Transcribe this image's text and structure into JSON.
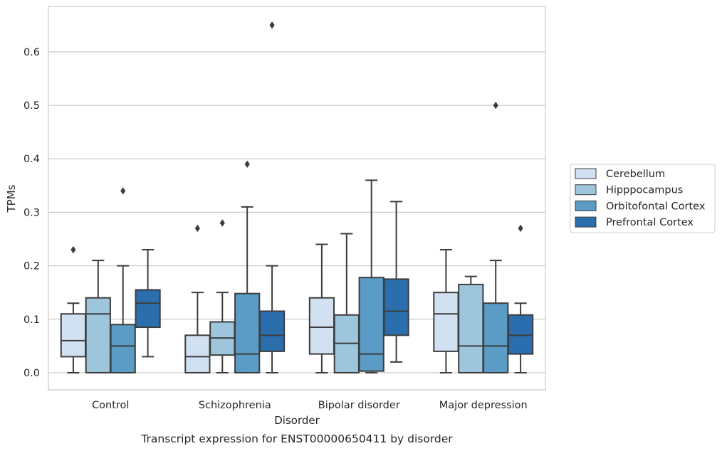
{
  "chart_data": {
    "type": "box",
    "title": "Transcript expression for ENST00000650411 by disorder",
    "xlabel": "Disorder",
    "ylabel": "TPMs",
    "ylim": [
      -0.032,
      0.685
    ],
    "yticks": [
      "0.0",
      "0.1",
      "0.2",
      "0.3",
      "0.4",
      "0.5",
      "0.6"
    ],
    "grid": true,
    "legend_position": "right",
    "categories": [
      "Control",
      "Schizophrenia",
      "Bipolar disorder",
      "Major depression"
    ],
    "series": [
      {
        "name": "Cerebellum",
        "color": "#d1e1f1",
        "boxes": [
          {
            "whislo": 0.0,
            "q1": 0.03,
            "med": 0.06,
            "q3": 0.11,
            "whishi": 0.13,
            "fliers": [
              0.23
            ]
          },
          {
            "whislo": 0.0,
            "q1": 0.0,
            "med": 0.03,
            "q3": 0.07,
            "whishi": 0.15,
            "fliers": [
              0.27
            ]
          },
          {
            "whislo": 0.0,
            "q1": 0.035,
            "med": 0.085,
            "q3": 0.14,
            "whishi": 0.24,
            "fliers": []
          },
          {
            "whislo": 0.0,
            "q1": 0.04,
            "med": 0.11,
            "q3": 0.15,
            "whishi": 0.23,
            "fliers": []
          }
        ]
      },
      {
        "name": "Hipppocampus",
        "color": "#9dc6dd",
        "boxes": [
          {
            "whislo": 0.0,
            "q1": 0.0,
            "med": 0.11,
            "q3": 0.14,
            "whishi": 0.21,
            "fliers": []
          },
          {
            "whislo": 0.0,
            "q1": 0.033,
            "med": 0.065,
            "q3": 0.095,
            "whishi": 0.15,
            "fliers": [
              0.28
            ]
          },
          {
            "whislo": 0.0,
            "q1": 0.0,
            "med": 0.055,
            "q3": 0.108,
            "whishi": 0.26,
            "fliers": []
          },
          {
            "whislo": 0.0,
            "q1": 0.0,
            "med": 0.05,
            "q3": 0.165,
            "whishi": 0.18,
            "fliers": []
          }
        ]
      },
      {
        "name": "Orbitofontal Cortex",
        "color": "#5a9cc6",
        "boxes": [
          {
            "whislo": 0.0,
            "q1": 0.0,
            "med": 0.05,
            "q3": 0.09,
            "whishi": 0.2,
            "fliers": [
              0.34
            ]
          },
          {
            "whislo": 0.0,
            "q1": 0.0,
            "med": 0.035,
            "q3": 0.148,
            "whishi": 0.31,
            "fliers": [
              0.39
            ]
          },
          {
            "whislo": 0.0,
            "q1": 0.003,
            "med": 0.035,
            "q3": 0.178,
            "whishi": 0.36,
            "fliers": []
          },
          {
            "whislo": 0.0,
            "q1": 0.0,
            "med": 0.05,
            "q3": 0.13,
            "whishi": 0.21,
            "fliers": [
              0.5
            ]
          }
        ]
      },
      {
        "name": "Prefrontal Cortex",
        "color": "#2a6ead",
        "boxes": [
          {
            "whislo": 0.03,
            "q1": 0.085,
            "med": 0.13,
            "q3": 0.155,
            "whishi": 0.23,
            "fliers": []
          },
          {
            "whislo": 0.0,
            "q1": 0.04,
            "med": 0.07,
            "q3": 0.115,
            "whishi": 0.2,
            "fliers": [
              0.65
            ]
          },
          {
            "whislo": 0.02,
            "q1": 0.07,
            "med": 0.115,
            "q3": 0.175,
            "whishi": 0.32,
            "fliers": []
          },
          {
            "whislo": 0.0,
            "q1": 0.035,
            "med": 0.07,
            "q3": 0.108,
            "whishi": 0.13,
            "fliers": [
              0.27
            ]
          }
        ]
      }
    ]
  }
}
